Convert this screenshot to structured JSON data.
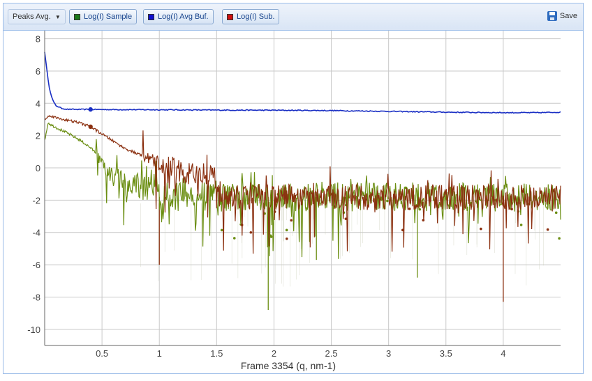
{
  "toolbar": {
    "dropdown_label": "Peaks Avg.",
    "sample_label": "Log(I) Sample",
    "avg_buf_label": "Log(I) Avg Buf.",
    "sub_label": "Log(I) Sub.",
    "save_label": "Save",
    "colors": {
      "sample": "#1a7a1a",
      "avg_buf": "#1010d0",
      "sub": "#d01010"
    }
  },
  "chart_data": {
    "type": "line",
    "xlabel": "Frame 3354 (q, nm-1)",
    "ylabel": "",
    "xlim": [
      0.0,
      4.5
    ],
    "ylim": [
      -11,
      8.5
    ],
    "grid": true,
    "x_ticks": [
      0.5,
      1,
      1.5,
      2,
      2.5,
      3,
      3.5,
      4
    ],
    "x_tick_labels": [
      "0.5",
      "1",
      "1.5",
      "2",
      "2.5",
      "3",
      "3.5",
      "4"
    ],
    "y_ticks": [
      8,
      6,
      4,
      2,
      0,
      -2,
      -4,
      -6,
      -8,
      -10
    ],
    "y_tick_labels": [
      "8",
      "6",
      "4",
      "2",
      "0",
      "-2",
      "-4",
      "-6",
      "-8",
      "-10"
    ],
    "series": [
      {
        "name": "Log(I) Avg Buf.",
        "color": "#1a2fc4",
        "x": [
          0.0,
          0.02,
          0.04,
          0.06,
          0.08,
          0.1,
          0.15,
          0.2,
          0.3,
          0.4,
          0.6,
          1.0,
          1.5,
          2.0,
          2.5,
          3.0,
          3.5,
          4.0,
          4.3,
          4.5
        ],
        "y": [
          7.2,
          6.0,
          5.0,
          4.4,
          4.05,
          3.85,
          3.68,
          3.63,
          3.62,
          3.62,
          3.61,
          3.6,
          3.58,
          3.57,
          3.55,
          3.5,
          3.45,
          3.42,
          3.42,
          3.45
        ]
      },
      {
        "name": "Log(I) Sub.",
        "color": "#8b3010",
        "x": [
          0.0,
          0.05,
          0.1,
          0.2,
          0.3,
          0.4,
          0.5,
          0.6,
          0.7,
          0.8,
          0.9,
          1.0,
          1.1,
          1.2,
          1.3,
          1.4,
          1.5
        ],
        "y": [
          3.0,
          3.25,
          3.1,
          2.95,
          2.8,
          2.55,
          2.1,
          1.65,
          1.2,
          0.9,
          0.6,
          0.3,
          0.05,
          -0.2,
          -0.35,
          -0.5,
          -0.6
        ]
      },
      {
        "name": "Log(I) Sample",
        "color": "#6b8e12",
        "x": [
          0.0,
          0.03,
          0.06,
          0.1,
          0.2,
          0.3,
          0.4,
          0.45,
          0.5,
          0.6,
          0.8,
          1.0
        ],
        "y": [
          1.7,
          2.8,
          2.65,
          2.5,
          2.15,
          1.75,
          1.25,
          0.9,
          0.2,
          -0.6,
          -1.0,
          -1.3
        ]
      }
    ],
    "noise_band": {
      "x_range": [
        0.5,
        4.5
      ],
      "center": -1.8,
      "spikes_down_to": [
        -8.8,
        -8.3,
        -6.8,
        -6.0,
        -5.7
      ]
    },
    "markers": [
      {
        "series": "Log(I) Avg Buf.",
        "x": 0.4,
        "y": 3.62
      },
      {
        "series": "Log(I) Sub.",
        "x": 0.4,
        "y": 2.55
      }
    ]
  }
}
